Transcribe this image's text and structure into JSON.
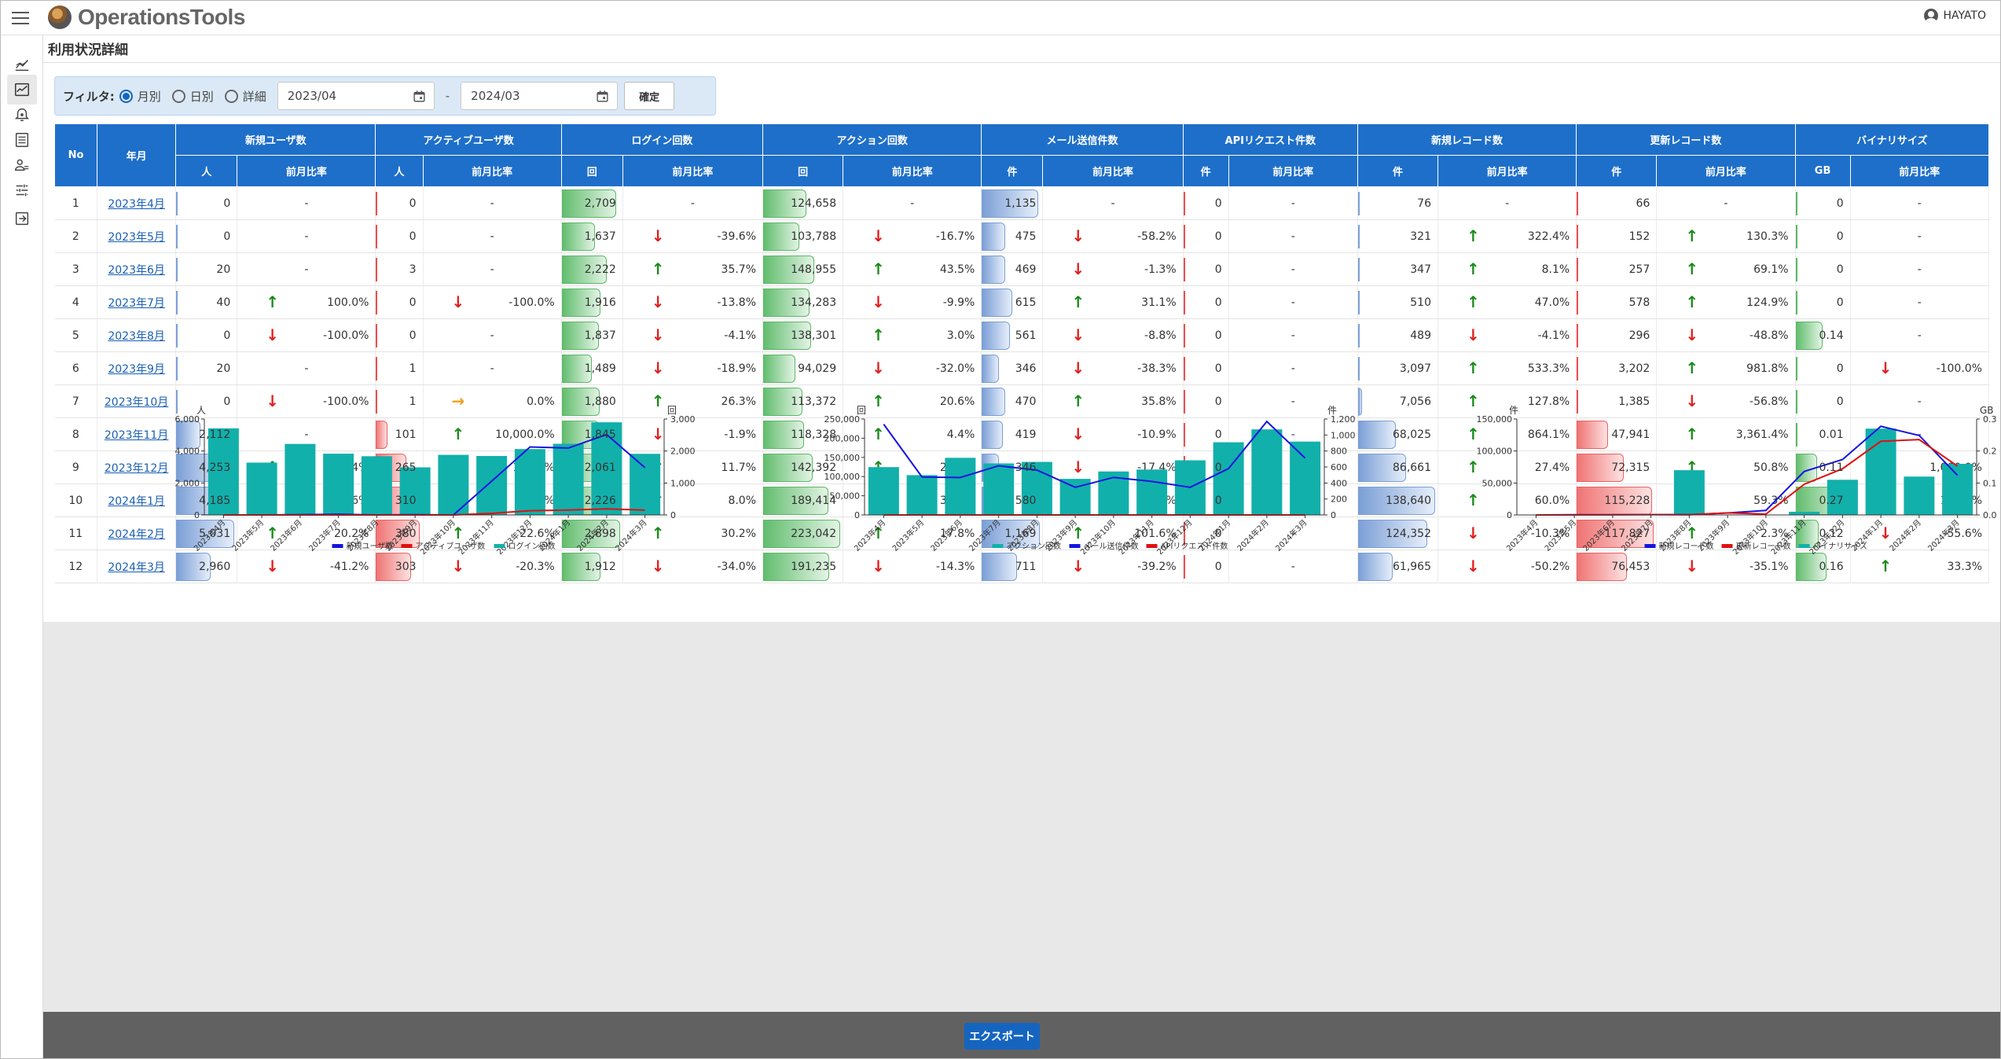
{
  "app": {
    "logo_text": "OperationsTools",
    "user_name": "HAYATO"
  },
  "sidebar": {
    "items": [
      {
        "icon": "line-chart-icon",
        "active": false
      },
      {
        "icon": "insights-icon",
        "active": true
      },
      {
        "icon": "alarm-icon",
        "active": false
      },
      {
        "icon": "list-icon",
        "active": false
      },
      {
        "icon": "users-icon",
        "active": false
      },
      {
        "icon": "tune-icon",
        "active": false
      },
      {
        "icon": "logout-icon",
        "active": false
      }
    ]
  },
  "page": {
    "title": "利用状況詳細"
  },
  "filter": {
    "label": "フィルタ:",
    "options": [
      "月別",
      "日別",
      "詳細"
    ],
    "selected": "月別",
    "date_from": "2023/04",
    "date_to": "2024/03",
    "separator": "-",
    "confirm_label": "確定"
  },
  "table": {
    "headers": {
      "no": "No",
      "month": "年月",
      "groups": [
        "新規ユーザ数",
        "アクティブユーザ数",
        "ログイン回数",
        "アクション回数",
        "メール送信件数",
        "APIリクエスト件数",
        "新規レコード数",
        "更新レコード数",
        "バイナリサイズ"
      ],
      "units": [
        "人",
        "人",
        "回",
        "回",
        "件",
        "件",
        "件",
        "件",
        "GB"
      ],
      "ratio": "前月比率"
    },
    "rows": [
      {
        "no": "1",
        "month": "2023年4月",
        "cells": [
          [
            "0",
            "-"
          ],
          [
            "0",
            "-"
          ],
          [
            "2,709",
            "-"
          ],
          [
            "124,658",
            "-"
          ],
          [
            "1,135",
            "-"
          ],
          [
            "0",
            "-"
          ],
          [
            "76",
            "-"
          ],
          [
            "66",
            "-"
          ],
          [
            "0",
            "-"
          ]
        ]
      },
      {
        "no": "2",
        "month": "2023年5月",
        "cells": [
          [
            "0",
            "-"
          ],
          [
            "0",
            "-"
          ],
          [
            "1,637",
            "-39.6%"
          ],
          [
            "103,788",
            "-16.7%"
          ],
          [
            "475",
            "-58.2%"
          ],
          [
            "0",
            "-"
          ],
          [
            "321",
            "322.4%"
          ],
          [
            "152",
            "130.3%"
          ],
          [
            "0",
            "-"
          ]
        ]
      },
      {
        "no": "3",
        "month": "2023年6月",
        "cells": [
          [
            "20",
            "-"
          ],
          [
            "3",
            "-"
          ],
          [
            "2,222",
            "35.7%"
          ],
          [
            "148,955",
            "43.5%"
          ],
          [
            "469",
            "-1.3%"
          ],
          [
            "0",
            "-"
          ],
          [
            "347",
            "8.1%"
          ],
          [
            "257",
            "69.1%"
          ],
          [
            "0",
            "-"
          ]
        ]
      },
      {
        "no": "4",
        "month": "2023年7月",
        "cells": [
          [
            "40",
            "100.0%"
          ],
          [
            "0",
            "-100.0%"
          ],
          [
            "1,916",
            "-13.8%"
          ],
          [
            "134,283",
            "-9.9%"
          ],
          [
            "615",
            "31.1%"
          ],
          [
            "0",
            "-"
          ],
          [
            "510",
            "47.0%"
          ],
          [
            "578",
            "124.9%"
          ],
          [
            "0",
            "-"
          ]
        ]
      },
      {
        "no": "5",
        "month": "2023年8月",
        "cells": [
          [
            "0",
            "-100.0%"
          ],
          [
            "0",
            "-"
          ],
          [
            "1,837",
            "-4.1%"
          ],
          [
            "138,301",
            "3.0%"
          ],
          [
            "561",
            "-8.8%"
          ],
          [
            "0",
            "-"
          ],
          [
            "489",
            "-4.1%"
          ],
          [
            "296",
            "-48.8%"
          ],
          [
            "0.14",
            "-"
          ]
        ]
      },
      {
        "no": "6",
        "month": "2023年9月",
        "cells": [
          [
            "20",
            "-"
          ],
          [
            "1",
            "-"
          ],
          [
            "1,489",
            "-18.9%"
          ],
          [
            "94,029",
            "-32.0%"
          ],
          [
            "346",
            "-38.3%"
          ],
          [
            "0",
            "-"
          ],
          [
            "3,097",
            "533.3%"
          ],
          [
            "3,202",
            "981.8%"
          ],
          [
            "0",
            "-100.0%"
          ]
        ]
      },
      {
        "no": "7",
        "month": "2023年10月",
        "cells": [
          [
            "0",
            "-100.0%"
          ],
          [
            "1",
            "0.0%"
          ],
          [
            "1,880",
            "26.3%"
          ],
          [
            "113,372",
            "20.6%"
          ],
          [
            "470",
            "35.8%"
          ],
          [
            "0",
            "-"
          ],
          [
            "7,056",
            "127.8%"
          ],
          [
            "1,385",
            "-56.8%"
          ],
          [
            "0",
            "-"
          ]
        ]
      },
      {
        "no": "8",
        "month": "2023年11月",
        "cells": [
          [
            "2,112",
            "-"
          ],
          [
            "101",
            "10,000.0%"
          ],
          [
            "1,845",
            "-1.9%"
          ],
          [
            "118,328",
            "4.4%"
          ],
          [
            "419",
            "-10.9%"
          ],
          [
            "0",
            "-"
          ],
          [
            "68,025",
            "864.1%"
          ],
          [
            "47,941",
            "3,361.4%"
          ],
          [
            "0.01",
            "-"
          ]
        ]
      },
      {
        "no": "9",
        "month": "2023年12月",
        "cells": [
          [
            "4,253",
            "101.4%"
          ],
          [
            "265",
            "162.4%"
          ],
          [
            "2,061",
            "11.7%"
          ],
          [
            "142,392",
            "20.3%"
          ],
          [
            "346",
            "-17.4%"
          ],
          [
            "0",
            "-"
          ],
          [
            "86,661",
            "27.4%"
          ],
          [
            "72,315",
            "50.8%"
          ],
          [
            "0.11",
            "1,000.0%"
          ]
        ]
      },
      {
        "no": "10",
        "month": "2024年1月",
        "cells": [
          [
            "4,185",
            "-1.6%"
          ],
          [
            "310",
            "17.0%"
          ],
          [
            "2,226",
            "8.0%"
          ],
          [
            "189,414",
            "33.0%"
          ],
          [
            "580",
            "67.6%"
          ],
          [
            "0",
            "-"
          ],
          [
            "138,640",
            "60.0%"
          ],
          [
            "115,228",
            "59.3%"
          ],
          [
            "0.27",
            "145.5%"
          ]
        ]
      },
      {
        "no": "11",
        "month": "2024年2月",
        "cells": [
          [
            "5,031",
            "20.2%"
          ],
          [
            "380",
            "22.6%"
          ],
          [
            "2,898",
            "30.2%"
          ],
          [
            "223,042",
            "17.8%"
          ],
          [
            "1,169",
            "101.6%"
          ],
          [
            "0",
            "-"
          ],
          [
            "124,352",
            "-10.3%"
          ],
          [
            "117,827",
            "2.3%"
          ],
          [
            "0.12",
            "-55.6%"
          ]
        ]
      },
      {
        "no": "12",
        "month": "2024年3月",
        "cells": [
          [
            "2,960",
            "-41.2%"
          ],
          [
            "303",
            "-20.3%"
          ],
          [
            "1,912",
            "-34.0%"
          ],
          [
            "191,235",
            "-14.3%"
          ],
          [
            "711",
            "-39.2%"
          ],
          [
            "0",
            "-"
          ],
          [
            "61,965",
            "-50.2%"
          ],
          [
            "76,453",
            "-35.1%"
          ],
          [
            "0.16",
            "33.3%"
          ]
        ]
      }
    ]
  },
  "colors": {
    "teal": "#12b0ab",
    "blue": "#1515e0",
    "red": "#e01010",
    "header": "#1e6fc9"
  },
  "charts": [
    {
      "left_unit": "人",
      "right_unit": "回",
      "left_ticks": [
        "6,000",
        "4,000",
        "2,000",
        "0"
      ],
      "right_ticks": [
        "3,000",
        "2,000",
        "1,000",
        "0"
      ],
      "legend": [
        "新規ユーザ数",
        "アクティブユーザ数",
        "ログイン回数"
      ],
      "chart_data": {
        "type": "bar",
        "categories": [
          "2023年4月",
          "2023年5月",
          "2023年6月",
          "2023年7月",
          "2023年8月",
          "2023年9月",
          "2023年10月",
          "2023年11月",
          "2023年12月",
          "2024年1月",
          "2024年2月",
          "2024年3月"
        ],
        "y_left_range": [
          0,
          6000
        ],
        "y_right_range": [
          0,
          3000
        ],
        "series": [
          {
            "name": "新規ユーザ数",
            "kind": "line",
            "axis": "left",
            "values": [
              0,
              0,
              20,
              40,
              0,
              20,
              0,
              2112,
              4253,
              4185,
              5031,
              2960
            ]
          },
          {
            "name": "アクティブユーザ数",
            "kind": "line",
            "axis": "left",
            "values": [
              0,
              0,
              3,
              0,
              0,
              1,
              1,
              101,
              265,
              310,
              380,
              303
            ]
          },
          {
            "name": "ログイン回数",
            "kind": "bar",
            "axis": "right",
            "values": [
              2709,
              1637,
              2222,
              1916,
              1837,
              1489,
              1880,
              1845,
              2061,
              2226,
              2898,
              1912
            ]
          }
        ]
      }
    },
    {
      "left_unit": "回",
      "right_unit": "件",
      "left_ticks": [
        "250,000",
        "200,000",
        "150,000",
        "100,000",
        "50,000",
        "0"
      ],
      "right_ticks": [
        "1,200",
        "1,000",
        "800",
        "600",
        "400",
        "200",
        "0"
      ],
      "legend": [
        "アクション回数",
        "メール送信件数",
        "APIリクエスト件数"
      ],
      "chart_data": {
        "type": "bar",
        "categories": [
          "2023年4月",
          "2023年5月",
          "2023年6月",
          "2023年7月",
          "2023年8月",
          "2023年9月",
          "2023年10月",
          "2023年11月",
          "2023年12月",
          "2024年1月",
          "2024年2月",
          "2024年3月"
        ],
        "y_left_range": [
          0,
          250000
        ],
        "y_right_range": [
          0,
          1200
        ],
        "series": [
          {
            "name": "アクション回数",
            "kind": "bar",
            "axis": "left",
            "values": [
              124658,
              103788,
              148955,
              134283,
              138301,
              94029,
              113372,
              118328,
              142392,
              189414,
              223042,
              191235
            ]
          },
          {
            "name": "メール送信件数",
            "kind": "line",
            "axis": "right",
            "values": [
              1135,
              475,
              469,
              615,
              561,
              346,
              470,
              419,
              346,
              580,
              1169,
              711
            ]
          },
          {
            "name": "APIリクエスト件数",
            "kind": "line",
            "axis": "right",
            "values": [
              0,
              0,
              0,
              0,
              0,
              0,
              0,
              0,
              0,
              0,
              0,
              0
            ]
          }
        ]
      }
    },
    {
      "left_unit": "件",
      "right_unit": "GB",
      "left_ticks": [
        "150,000",
        "100,000",
        "50,000",
        "0"
      ],
      "right_ticks": [
        "0.3",
        "0.2",
        "0.1",
        "0.0"
      ],
      "legend": [
        "新規レコード数",
        "更新レコード数",
        "バイナリサイズ"
      ],
      "chart_data": {
        "type": "bar",
        "categories": [
          "2023年4月",
          "2023年5月",
          "2023年6月",
          "2023年7月",
          "2023年8月",
          "2023年9月",
          "2023年10月",
          "2023年11月",
          "2023年12月",
          "2024年1月",
          "2024年2月",
          "2024年3月"
        ],
        "y_left_range": [
          0,
          150000
        ],
        "y_right_range": [
          0,
          0.3
        ],
        "series": [
          {
            "name": "新規レコード数",
            "kind": "line",
            "axis": "left",
            "values": [
              76,
              321,
              347,
              510,
              489,
              3097,
              7056,
              68025,
              86661,
              138640,
              124352,
              61965
            ]
          },
          {
            "name": "更新レコード数",
            "kind": "line",
            "axis": "left",
            "values": [
              66,
              152,
              257,
              578,
              296,
              3202,
              1385,
              47941,
              72315,
              115228,
              117827,
              76453
            ]
          },
          {
            "name": "バイナリサイズ",
            "kind": "bar",
            "axis": "right",
            "values": [
              0,
              0,
              0,
              0,
              0.14,
              0,
              0,
              0.01,
              0.11,
              0.27,
              0.12,
              0.16
            ]
          }
        ]
      }
    }
  ],
  "footer": {
    "export_label": "エクスポート"
  }
}
